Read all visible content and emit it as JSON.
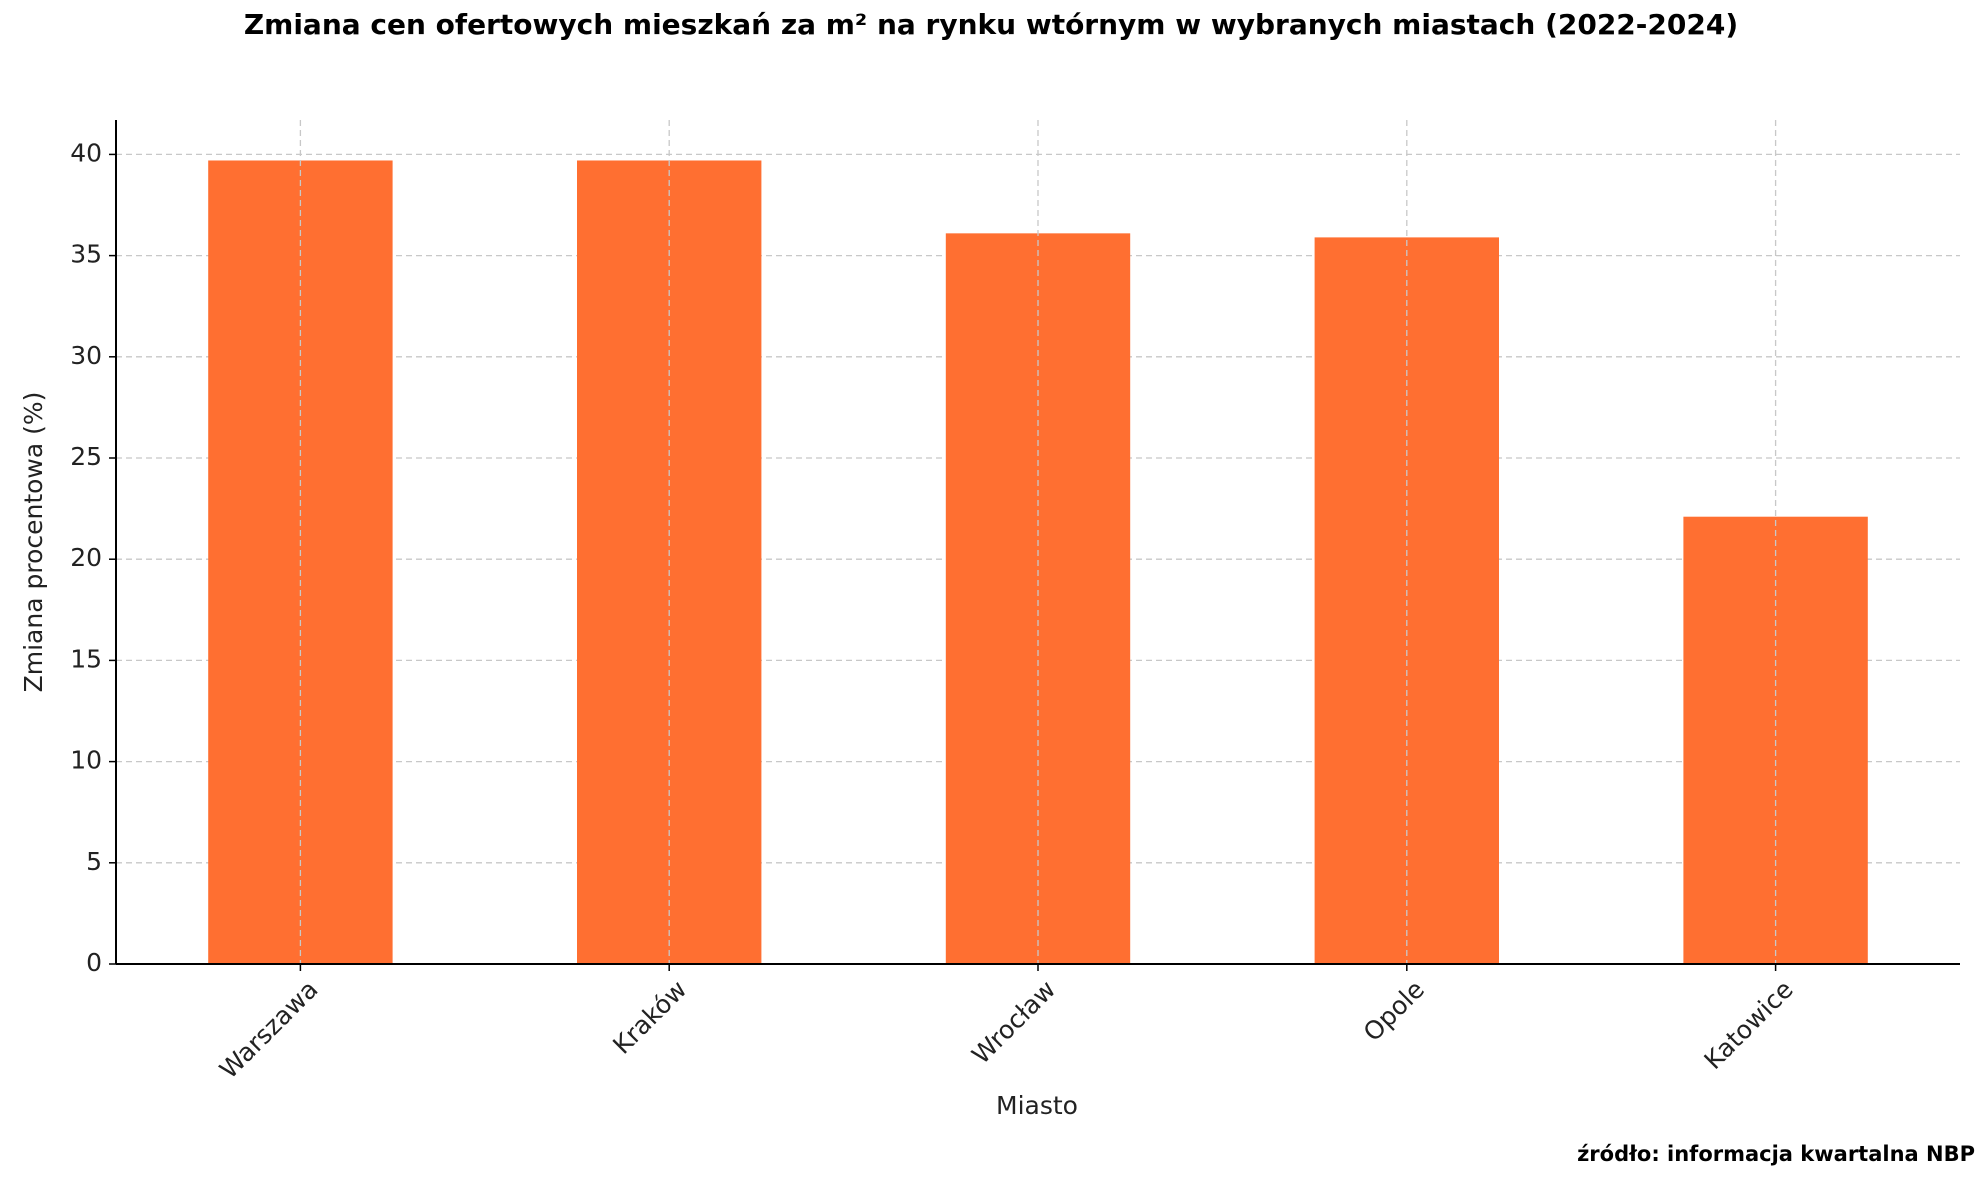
{
  "chart_data": {
    "type": "bar",
    "title": "Zmiana cen ofertowych mieszkań za m² na rynku wtórnym w wybranych miastach (2022-2024)",
    "x_label": "Miasto",
    "y_label": "Zmiana procentowa (%)",
    "source": "źródło: informacja kwartalna NBP",
    "categories": [
      "Warszawa",
      "Kraków",
      "Wrocław",
      "Opole",
      "Katowice"
    ],
    "values": [
      39.7,
      39.7,
      36.1,
      35.9,
      22.1
    ],
    "color": "#ff6f31",
    "ylim": [
      0,
      41.7
    ],
    "yticks": [
      0,
      5,
      10,
      15,
      20,
      25,
      30,
      35,
      40
    ],
    "grid": true
  }
}
